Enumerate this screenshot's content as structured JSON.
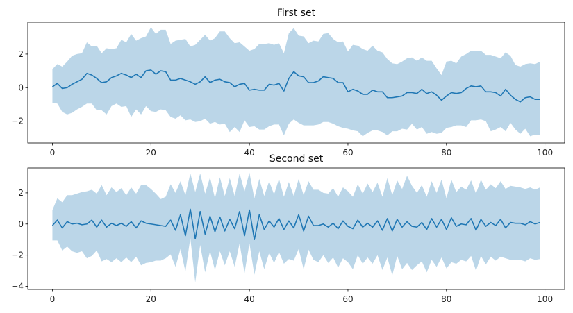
{
  "chart_data": [
    {
      "type": "line",
      "title": "First set",
      "xlabel": "",
      "ylabel": "",
      "xlim": [
        -5,
        104
      ],
      "ylim": [
        -3.3,
        3.9
      ],
      "xticks": [
        0,
        20,
        40,
        60,
        80,
        100
      ],
      "yticks": [
        -2,
        0,
        2
      ],
      "line_color": "#1f77b4",
      "band_color": "#1f77b4",
      "band_alpha": 0.3,
      "series": [
        {
          "name": "mean",
          "x_start": 0,
          "values": [
            0.05,
            0.25,
            -0.05,
            0.0,
            0.2,
            0.35,
            0.5,
            0.85,
            0.75,
            0.55,
            0.3,
            0.35,
            0.6,
            0.7,
            0.85,
            0.75,
            0.6,
            0.8,
            0.6,
            1.0,
            1.05,
            0.8,
            1.0,
            0.95,
            0.45,
            0.45,
            0.55,
            0.45,
            0.35,
            0.2,
            0.35,
            0.65,
            0.3,
            0.45,
            0.5,
            0.35,
            0.3,
            0.05,
            0.2,
            0.25,
            -0.15,
            -0.1,
            -0.15,
            -0.15,
            0.2,
            0.15,
            0.25,
            -0.2,
            0.55,
            0.95,
            0.7,
            0.65,
            0.3,
            0.3,
            0.4,
            0.65,
            0.6,
            0.55,
            0.3,
            0.3,
            -0.25,
            -0.1,
            -0.2,
            -0.4,
            -0.4,
            -0.15,
            -0.25,
            -0.25,
            -0.6,
            -0.6,
            -0.55,
            -0.5,
            -0.3,
            -0.3,
            -0.35,
            -0.1,
            -0.35,
            -0.25,
            -0.45,
            -0.75,
            -0.5,
            -0.3,
            -0.35,
            -0.3,
            -0.05,
            0.1,
            0.05,
            0.1,
            -0.25,
            -0.25,
            -0.3,
            -0.5,
            -0.1,
            -0.45,
            -0.7,
            -0.85,
            -0.6,
            -0.55,
            -0.7,
            -0.7
          ]
        },
        {
          "name": "band",
          "x_start": 0,
          "upper": [
            1.1,
            1.4,
            1.25,
            1.55,
            1.9,
            2.0,
            2.05,
            2.7,
            2.45,
            2.5,
            2.05,
            2.35,
            2.3,
            2.35,
            2.85,
            2.7,
            3.2,
            2.8,
            2.95,
            3.05,
            3.6,
            3.2,
            3.45,
            3.45,
            2.6,
            2.8,
            2.85,
            2.9,
            2.45,
            2.55,
            2.85,
            3.15,
            2.8,
            2.95,
            3.35,
            3.35,
            2.95,
            2.65,
            2.7,
            2.45,
            2.2,
            2.3,
            2.6,
            2.6,
            2.65,
            2.55,
            2.65,
            2.05,
            3.25,
            3.55,
            3.1,
            3.05,
            2.65,
            2.8,
            2.75,
            3.2,
            3.25,
            2.9,
            2.7,
            2.75,
            2.15,
            2.55,
            2.5,
            2.3,
            2.2,
            2.5,
            2.2,
            2.1,
            1.7,
            1.45,
            1.4,
            1.55,
            1.75,
            1.8,
            1.6,
            1.8,
            1.6,
            1.6,
            1.15,
            0.75,
            1.55,
            1.6,
            1.45,
            1.85,
            2.0,
            2.2,
            2.2,
            2.2,
            1.95,
            1.95,
            1.85,
            1.75,
            2.1,
            1.9,
            1.35,
            1.25,
            1.4,
            1.45,
            1.4,
            1.55
          ],
          "lower": [
            -0.9,
            -0.95,
            -1.45,
            -1.6,
            -1.5,
            -1.3,
            -1.15,
            -0.95,
            -0.95,
            -1.35,
            -1.35,
            -1.6,
            -1.1,
            -0.95,
            -1.15,
            -1.1,
            -1.75,
            -1.3,
            -1.6,
            -1.1,
            -1.4,
            -1.45,
            -1.3,
            -1.35,
            -1.75,
            -1.85,
            -1.65,
            -1.95,
            -1.9,
            -2.05,
            -2.0,
            -1.85,
            -2.15,
            -2.05,
            -2.2,
            -2.15,
            -2.65,
            -2.35,
            -2.65,
            -1.95,
            -2.35,
            -2.3,
            -2.5,
            -2.5,
            -2.3,
            -2.2,
            -2.2,
            -2.85,
            -2.15,
            -1.9,
            -2.1,
            -2.25,
            -2.25,
            -2.25,
            -2.2,
            -2.05,
            -2.05,
            -2.15,
            -2.3,
            -2.4,
            -2.45,
            -2.55,
            -2.6,
            -2.9,
            -2.7,
            -2.55,
            -2.55,
            -2.65,
            -2.85,
            -2.6,
            -2.6,
            -2.45,
            -2.5,
            -2.15,
            -2.5,
            -2.35,
            -2.75,
            -2.65,
            -2.75,
            -2.7,
            -2.4,
            -2.35,
            -2.25,
            -2.25,
            -2.35,
            -1.95,
            -1.95,
            -1.9,
            -2.0,
            -2.6,
            -2.5,
            -2.35,
            -2.6,
            -2.1,
            -2.5,
            -2.75,
            -2.45,
            -2.9,
            -2.8,
            -2.85
          ]
        }
      ]
    },
    {
      "type": "line",
      "title": "Second set",
      "xlabel": "",
      "ylabel": "",
      "xlim": [
        -5,
        104
      ],
      "ylim": [
        -4.2,
        3.6
      ],
      "xticks": [
        0,
        20,
        40,
        60,
        80,
        100
      ],
      "yticks": [
        -4,
        -2,
        0,
        2
      ],
      "line_color": "#1f77b4",
      "band_color": "#1f77b4",
      "band_alpha": 0.3,
      "series": [
        {
          "name": "mean",
          "x_start": 0,
          "values": [
            -0.1,
            0.25,
            -0.25,
            0.15,
            0.0,
            0.05,
            -0.05,
            0.0,
            0.25,
            -0.2,
            0.25,
            -0.2,
            0.05,
            -0.1,
            0.05,
            -0.15,
            0.15,
            -0.25,
            0.2,
            0.05,
            0.0,
            -0.05,
            -0.1,
            -0.15,
            0.25,
            -0.4,
            0.6,
            -0.75,
            0.95,
            -0.95,
            0.8,
            -0.65,
            0.5,
            -0.5,
            0.45,
            -0.45,
            0.3,
            -0.3,
            0.8,
            -0.75,
            0.9,
            -1.0,
            0.6,
            -0.35,
            0.2,
            -0.2,
            0.35,
            -0.35,
            0.2,
            -0.25,
            0.6,
            -0.45,
            0.5,
            -0.1,
            -0.1,
            0.0,
            -0.2,
            0.05,
            -0.3,
            0.2,
            -0.15,
            -0.3,
            0.25,
            -0.2,
            0.05,
            -0.2,
            0.2,
            -0.4,
            0.35,
            -0.45,
            0.3,
            -0.2,
            0.15,
            -0.15,
            -0.2,
            0.1,
            -0.35,
            0.35,
            -0.2,
            0.3,
            -0.35,
            0.4,
            -0.15,
            0.0,
            -0.05,
            0.35,
            -0.4,
            0.3,
            -0.15,
            0.1,
            -0.1,
            0.3,
            -0.25,
            0.1,
            0.05,
            0.05,
            -0.05,
            0.15,
            0.0,
            0.1
          ]
        },
        {
          "name": "band",
          "x_start": 0,
          "upper": [
            0.9,
            1.65,
            1.4,
            1.85,
            1.85,
            1.95,
            2.05,
            2.1,
            2.2,
            1.95,
            2.5,
            1.85,
            2.35,
            2.05,
            2.3,
            1.85,
            2.35,
            1.95,
            2.5,
            2.5,
            2.25,
            1.95,
            1.6,
            1.75,
            2.55,
            2.0,
            2.75,
            1.85,
            3.25,
            2.05,
            3.25,
            1.95,
            3.0,
            1.65,
            3.0,
            1.8,
            2.95,
            1.8,
            3.25,
            2.1,
            3.3,
            1.65,
            2.9,
            1.8,
            2.75,
            1.9,
            2.9,
            1.75,
            2.7,
            1.8,
            2.9,
            1.85,
            2.75,
            2.2,
            2.2,
            2.0,
            1.95,
            2.3,
            1.75,
            2.35,
            2.1,
            1.75,
            2.55,
            1.95,
            2.6,
            2.05,
            2.65,
            1.75,
            2.95,
            1.85,
            2.8,
            2.25,
            3.1,
            2.45,
            2.0,
            2.5,
            1.75,
            2.75,
            2.0,
            2.85,
            1.65,
            2.85,
            2.05,
            2.4,
            2.2,
            2.8,
            1.95,
            2.85,
            2.2,
            2.55,
            2.3,
            2.75,
            2.25,
            2.45,
            2.4,
            2.35,
            2.25,
            2.35,
            2.2,
            2.35
          ],
          "lower": [
            -1.05,
            -1.05,
            -1.7,
            -1.45,
            -1.75,
            -1.85,
            -1.75,
            -2.2,
            -2.05,
            -1.7,
            -2.4,
            -2.25,
            -2.45,
            -2.2,
            -2.45,
            -2.15,
            -2.45,
            -2.1,
            -2.65,
            -2.5,
            -2.45,
            -2.35,
            -2.35,
            -2.2,
            -1.95,
            -2.75,
            -1.6,
            -3.05,
            -0.9,
            -3.75,
            -1.35,
            -3.1,
            -1.75,
            -2.95,
            -1.75,
            -2.65,
            -1.75,
            -2.75,
            -1.25,
            -3.15,
            -1.25,
            -3.25,
            -1.75,
            -2.9,
            -1.85,
            -2.5,
            -1.8,
            -2.55,
            -2.25,
            -2.35,
            -1.6,
            -2.9,
            -1.65,
            -2.3,
            -2.45,
            -2.0,
            -2.5,
            -2.15,
            -2.8,
            -2.2,
            -2.45,
            -2.9,
            -2.0,
            -2.55,
            -2.15,
            -2.55,
            -2.0,
            -2.95,
            -2.15,
            -3.3,
            -2.05,
            -2.9,
            -2.5,
            -2.95,
            -2.65,
            -2.4,
            -3.1,
            -2.3,
            -2.75,
            -2.15,
            -2.85,
            -2.45,
            -2.55,
            -2.3,
            -2.4,
            -2.05,
            -3.0,
            -2.05,
            -2.6,
            -2.1,
            -2.35,
            -2.1,
            -2.2,
            -2.3,
            -2.3,
            -2.3,
            -2.4,
            -2.2,
            -2.3,
            -2.25
          ]
        }
      ]
    }
  ]
}
